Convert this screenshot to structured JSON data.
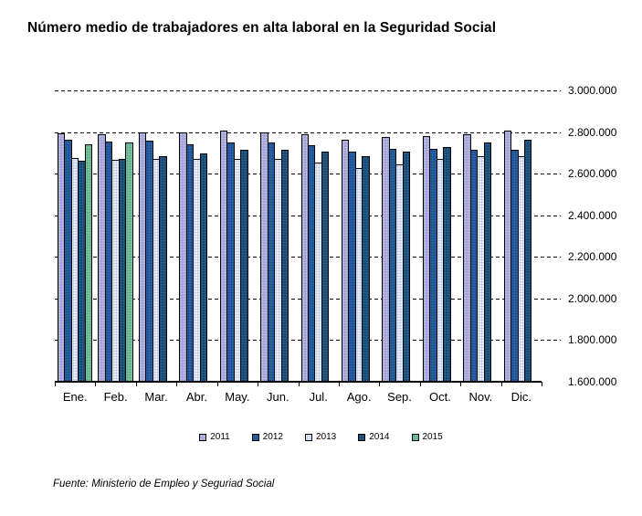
{
  "chart_data": {
    "type": "bar",
    "title": "Número medio de trabajadores en alta laboral en la Seguridad Social",
    "categories": [
      "Ene.",
      "Feb.",
      "Mar.",
      "Abr.",
      "May.",
      "Jun.",
      "Jul.",
      "Ago.",
      "Sep.",
      "Oct.",
      "Nov.",
      "Dic."
    ],
    "series": [
      {
        "name": "2011",
        "color": "#9CA3D6",
        "pattern_color": "#C9BFE4",
        "values": [
          2794000,
          2789000,
          2800000,
          2798000,
          2805000,
          2798000,
          2789000,
          2761000,
          2774000,
          2781000,
          2789000,
          2805000
        ]
      },
      {
        "name": "2012",
        "color": "#2A62A8",
        "pattern_color": "#174A80",
        "values": [
          2761000,
          2754000,
          2757000,
          2743000,
          2752000,
          2752000,
          2737000,
          2706000,
          2719000,
          2719000,
          2715000,
          2713000
        ]
      },
      {
        "name": "2013",
        "color": "#E8EEF9",
        "pattern_color": "#AEC5E6",
        "values": [
          2675000,
          2667000,
          2669000,
          2669000,
          2673000,
          2673000,
          2653000,
          2627000,
          2645000,
          2669000,
          2682000,
          2686000
        ]
      },
      {
        "name": "2014",
        "color": "#15476F",
        "pattern_color": "#2B6495",
        "values": [
          2662000,
          2671000,
          2682000,
          2695000,
          2713000,
          2715000,
          2704000,
          2682000,
          2706000,
          2730000,
          2752000,
          2761000
        ]
      },
      {
        "name": "2015",
        "color": "#7CC4A1",
        "pattern_color": "#4FA87E",
        "values": [
          2739000,
          2752000,
          null,
          null,
          null,
          null,
          null,
          null,
          null,
          null,
          null,
          null
        ]
      }
    ],
    "ylim": [
      1600000,
      3000000
    ],
    "ytick_step": 200000,
    "ytick_labels": [
      "3.000.000",
      "2.800.000",
      "2.600.000",
      "2.400.000",
      "2.200.000",
      "2.000.000",
      "1.800.000",
      "1.600.000"
    ],
    "grid": "dashed-horizontal",
    "legend_position": "bottom"
  },
  "source": "Fuente: Ministerio de Empleo y Seguriad Social"
}
